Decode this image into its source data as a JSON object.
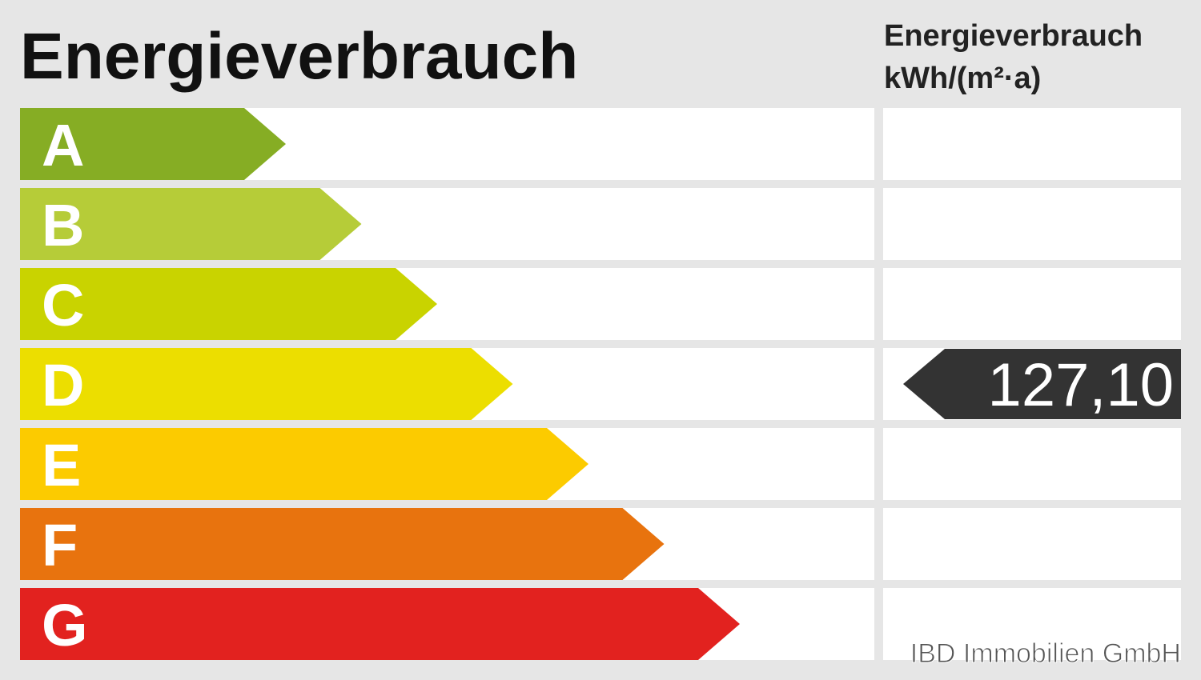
{
  "header": {
    "title": "Energieverbrauch",
    "unit_lines": [
      "Energieverbrauch",
      "kWh/(m²·a)"
    ]
  },
  "classes": [
    {
      "label": "A",
      "color": "#86ad24"
    },
    {
      "label": "B",
      "color": "#b6cc38"
    },
    {
      "label": "C",
      "color": "#c9d300"
    },
    {
      "label": "D",
      "color": "#ecde00"
    },
    {
      "label": "E",
      "color": "#fccb00"
    },
    {
      "label": "F",
      "color": "#e8730e"
    },
    {
      "label": "G",
      "color": "#e2221f"
    }
  ],
  "indicator": {
    "class": "D",
    "value": "127,10"
  },
  "footer": "IBD Immobilien GmbH"
}
